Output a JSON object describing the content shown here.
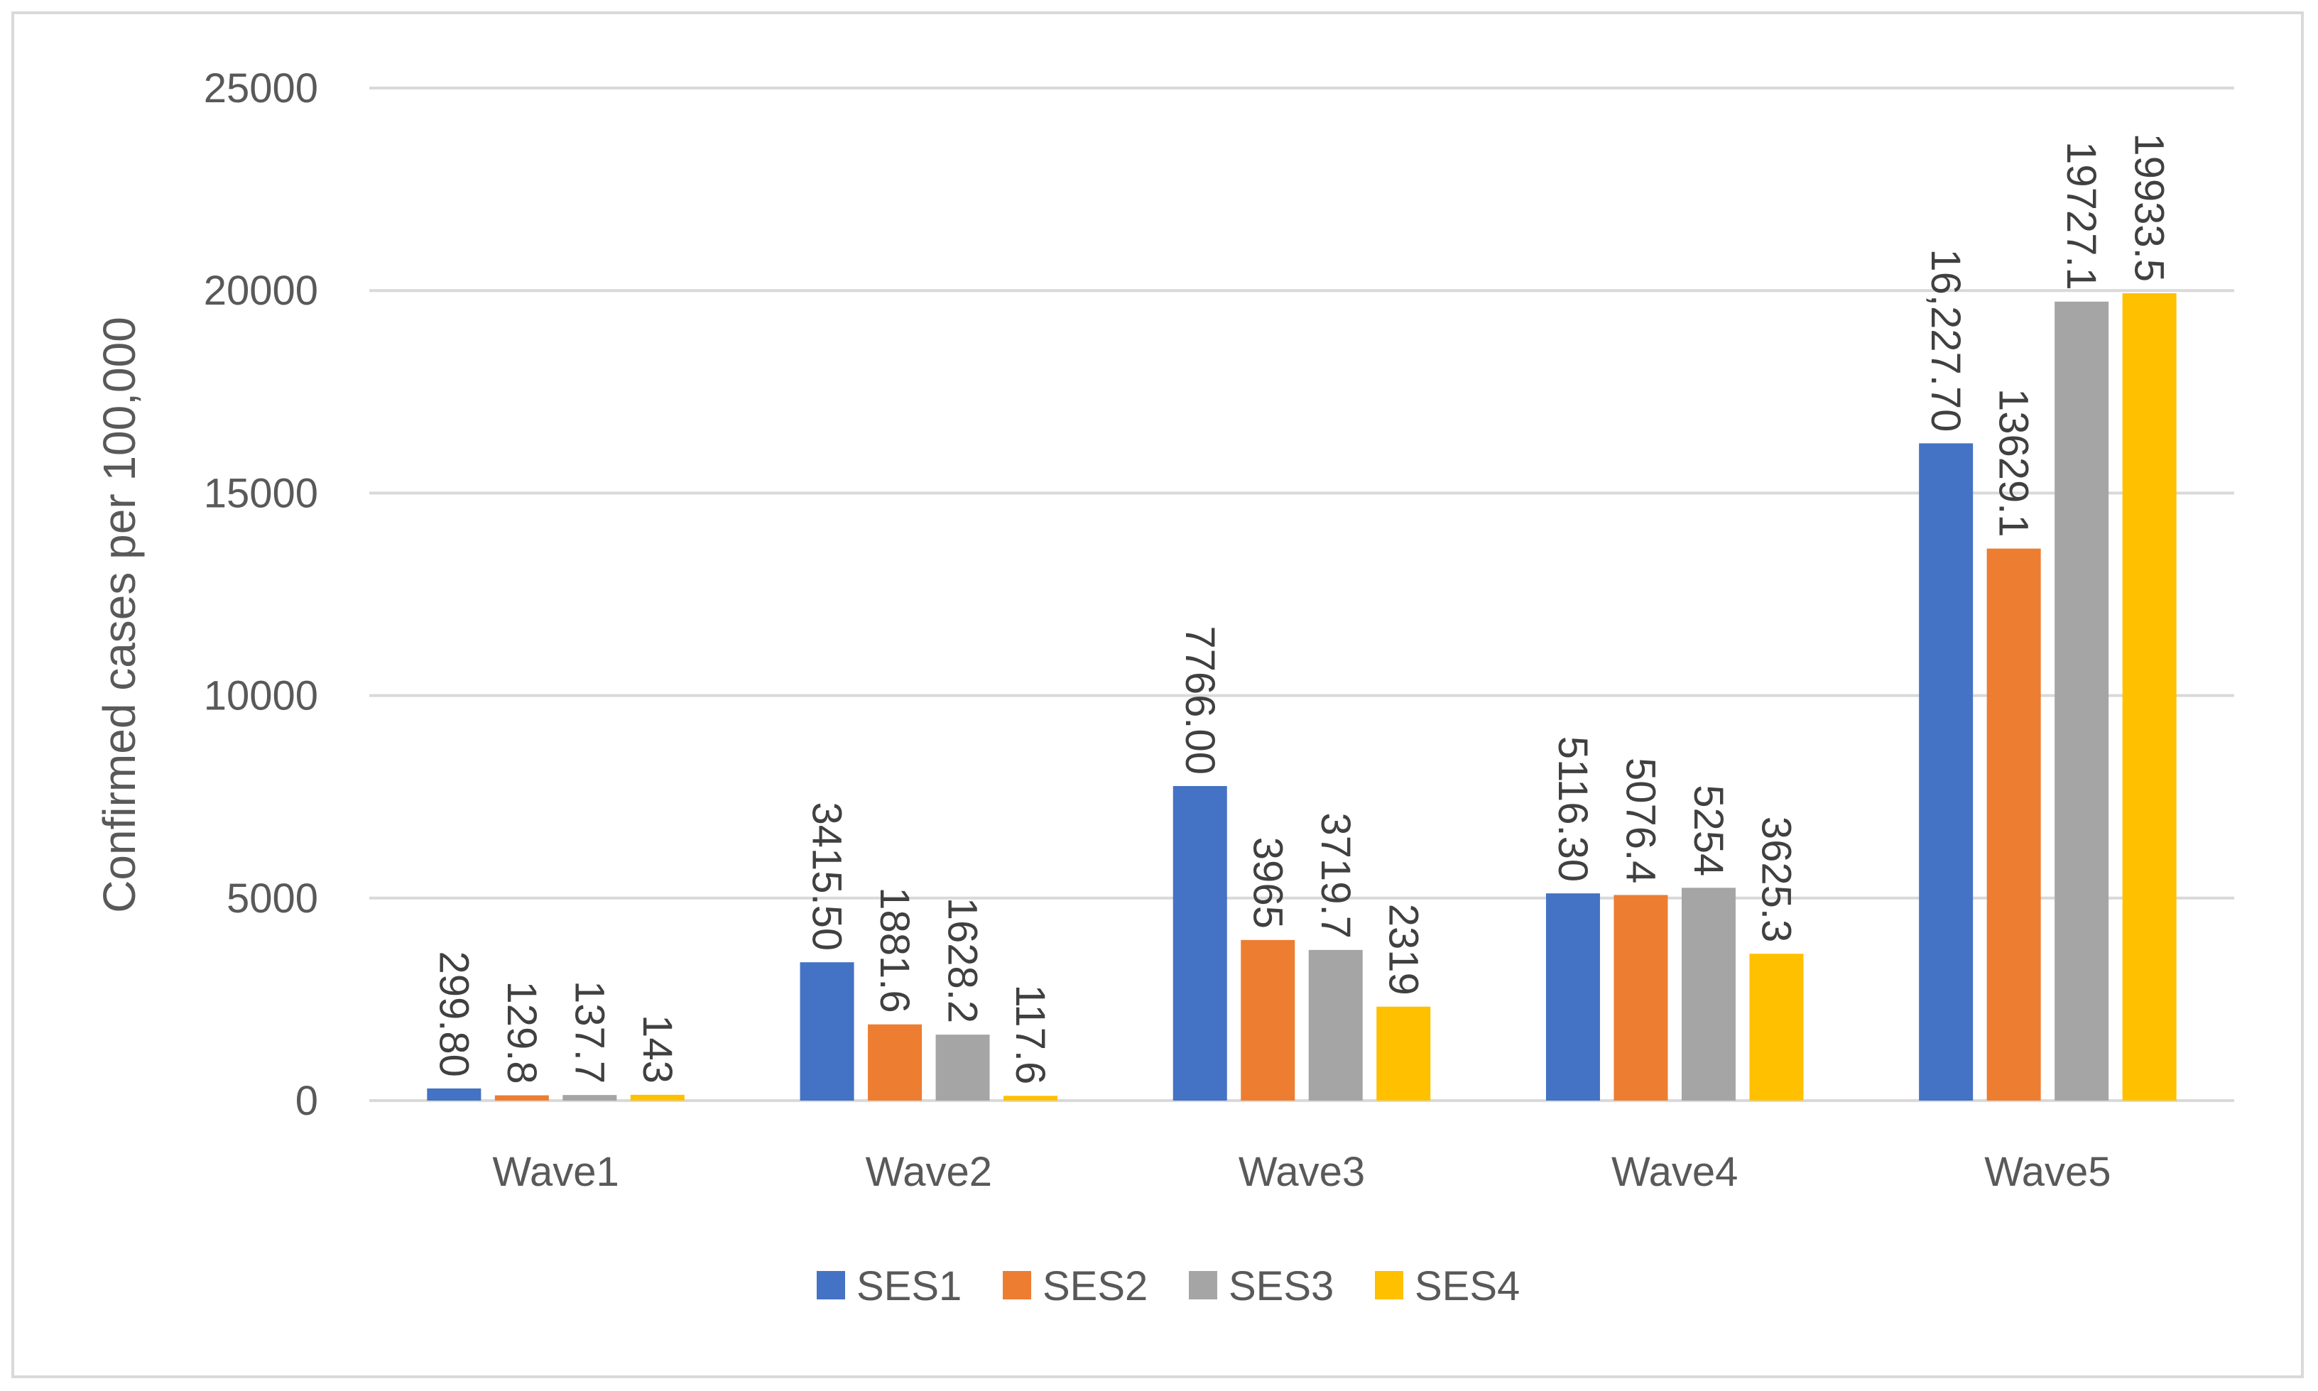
{
  "chart_data": {
    "type": "bar",
    "title": "",
    "xlabel": "",
    "ylabel": "Confirmed cases per 100,000",
    "ylim": [
      0,
      25000
    ],
    "yticks": [
      0,
      5000,
      10000,
      15000,
      20000,
      25000
    ],
    "ytick_labels": [
      "0",
      "5000",
      "10000",
      "15000",
      "20000",
      "25000"
    ],
    "grid": true,
    "legend_position": "bottom",
    "categories": [
      "Wave1",
      "Wave2",
      "Wave3",
      "Wave4",
      "Wave5"
    ],
    "series": [
      {
        "name": "SES1",
        "color": "#4472C4",
        "values": [
          299.8,
          3415.5,
          7766.0,
          5116.3,
          16227.7
        ],
        "labels": [
          "299.80",
          "3415.50",
          "7766.00",
          "5116.30",
          "16,227.70"
        ]
      },
      {
        "name": "SES2",
        "color": "#ED7D31",
        "values": [
          129.8,
          1881.6,
          3965,
          5076.4,
          13629.1
        ],
        "labels": [
          "129.8",
          "1881.6",
          "3965",
          "5076.4",
          "13629.1"
        ]
      },
      {
        "name": "SES3",
        "color": "#A5A5A5",
        "values": [
          137.7,
          1628.2,
          3719.7,
          5254,
          19727.1
        ],
        "labels": [
          "137.7",
          "1628.2",
          "3719.7",
          "5254",
          "19727.1"
        ]
      },
      {
        "name": "SES4",
        "color": "#FFC000",
        "values": [
          143,
          117.6,
          2319,
          3625.3,
          19933.5
        ],
        "labels": [
          "143",
          "117.6",
          "2319",
          "3625.3",
          "19933.5"
        ]
      }
    ]
  }
}
